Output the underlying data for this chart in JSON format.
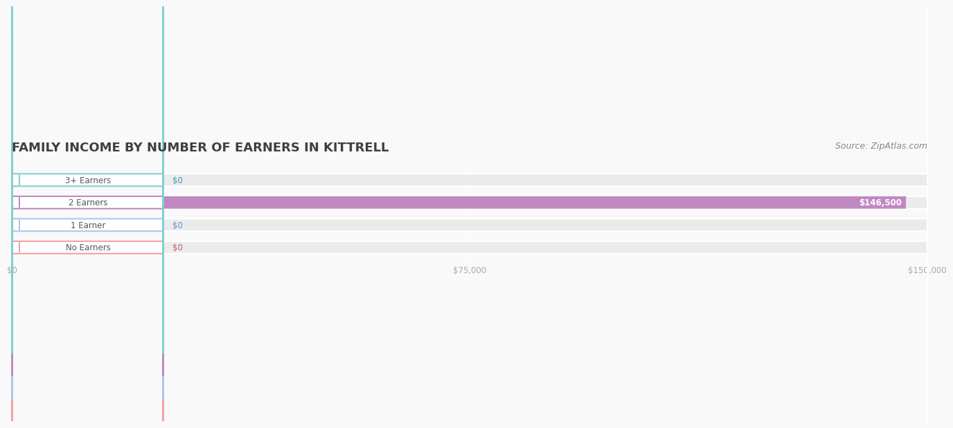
{
  "title": "FAMILY INCOME BY NUMBER OF EARNERS IN KITTRELL",
  "source": "Source: ZipAtlas.com",
  "categories": [
    "No Earners",
    "1 Earner",
    "2 Earners",
    "3+ Earners"
  ],
  "values": [
    0,
    0,
    146500,
    0
  ],
  "bar_colors": [
    "#f4a0a0",
    "#a8c8f0",
    "#c088c0",
    "#80d0d0"
  ],
  "bar_bg_color": "#ebebeb",
  "label_colors": [
    "#c06060",
    "#6090c0",
    "#9060a0",
    "#40a0b0"
  ],
  "value_labels": [
    "$0",
    "$0",
    "$146,500",
    "$0"
  ],
  "xlim": [
    0,
    150000
  ],
  "xticks": [
    0,
    75000,
    150000
  ],
  "xtick_labels": [
    "$0",
    "$75,000",
    "$150,000"
  ],
  "title_color": "#404040",
  "title_fontsize": 13,
  "source_color": "#888888",
  "source_fontsize": 9,
  "background_color": "#f9f9f9"
}
